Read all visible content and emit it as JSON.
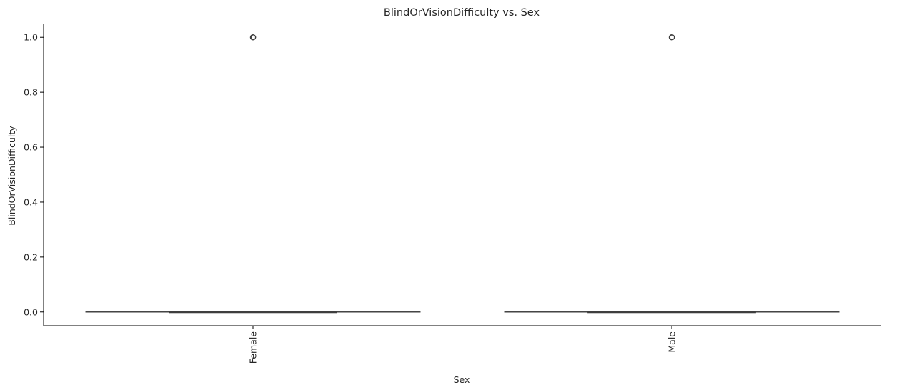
{
  "chart_data": {
    "type": "box",
    "title": "BlindOrVisionDifficulty vs. Sex",
    "xlabel": "Sex",
    "ylabel": "BlindOrVisionDifficulty",
    "categories": [
      "Female",
      "Male"
    ],
    "ylim": [
      -0.05,
      1.05
    ],
    "yticks": [
      "0.0",
      "0.2",
      "0.4",
      "0.6",
      "0.8",
      "1.0"
    ],
    "boxes": [
      {
        "category": "Female",
        "min": 0.0,
        "q1": 0.0,
        "median": 0.0,
        "q3": 0.0,
        "max": 0.0,
        "outliers": [
          1.0
        ]
      },
      {
        "category": "Male",
        "min": 0.0,
        "q1": 0.0,
        "median": 0.0,
        "q3": 0.0,
        "max": 0.0,
        "outliers": [
          1.0
        ]
      }
    ],
    "grid": false,
    "colors": {
      "box_line": "#3f3f3f",
      "axis": "#000000",
      "text": "#262626"
    }
  }
}
